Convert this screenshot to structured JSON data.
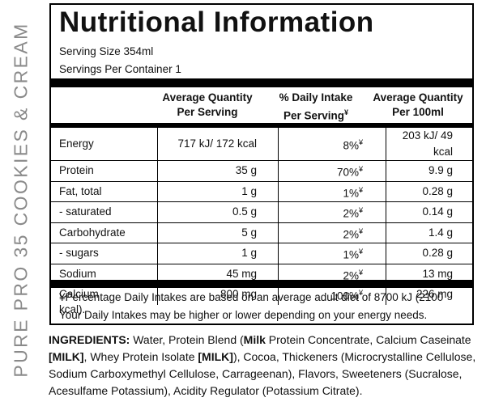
{
  "side_label": "PURE PRO 35 COOKIES & CREAM",
  "panel": {
    "title": "Nutritional Information",
    "serving_size": "Serving Size 354ml",
    "servings_per_container": "Servings Per Container 1",
    "header": [
      {
        "lines": [
          "Average Quantity",
          "Per Serving"
        ]
      },
      {
        "lines": [
          "% Daily Intake",
          "Per Serving"
        ],
        "marker": "¥"
      },
      {
        "lines": [
          "Average Quantity",
          "Per 100ml"
        ]
      }
    ],
    "rows": [
      {
        "name": "Energy",
        "per_serving": "717 kJ/ 172 kcal",
        "daily": "8%",
        "marker": "¥",
        "per_100ml": "203 kJ/ 49 kcal"
      },
      {
        "name": "Protein",
        "per_serving": "35 g",
        "daily": "70%",
        "marker": "¥",
        "per_100ml": "9.9 g"
      },
      {
        "name": "Fat, total",
        "per_serving": "1 g",
        "daily": "1%",
        "marker": "¥",
        "per_100ml": "0.28 g"
      },
      {
        "name": "- saturated",
        "per_serving": "0.5 g",
        "daily": "2%",
        "marker": "¥",
        "per_100ml": "0.14 g"
      },
      {
        "name": "Carbohydrate",
        "per_serving": "5 g",
        "daily": "2%",
        "marker": "¥",
        "per_100ml": "1.4 g"
      },
      {
        "name": "- sugars",
        "per_serving": "1 g",
        "daily": "1%",
        "marker": "¥",
        "per_100ml": "0.28 g"
      },
      {
        "name": "Sodium",
        "per_serving": "45 mg",
        "daily": "2%",
        "marker": "¥",
        "per_100ml": "13 mg"
      },
      {
        "name": "Calcium",
        "per_serving": "800 mg",
        "daily": "100%",
        "marker": "¥",
        "per_100ml": "226 mg"
      }
    ],
    "footnote": [
      "¥Percentage Daily Intakes are based on an average adult diet of 8700 kJ (2100 kcal).",
      "Your Daily Intakes may be higher or lower depending on your energy needs."
    ]
  },
  "ingredients": [
    {
      "text": "INGREDIENTS:",
      "bold": true
    },
    {
      "text": " Water, Protein Blend (",
      "bold": false
    },
    {
      "text": "Milk",
      "bold": true
    },
    {
      "text": " Protein Concentrate, Calcium Caseinate ",
      "bold": false
    },
    {
      "text": "[MILK]",
      "bold": true
    },
    {
      "text": ", Whey Protein Isolate ",
      "bold": false
    },
    {
      "text": "[MILK]",
      "bold": true
    },
    {
      "text": "), Cocoa, Thickeners (Microcrystalline Cellulose, Sodium Carboxymethyl Cellulose, Carrageenan), Flavors, Sweeteners (Sucralose, Acesulfame Potassium), Acidity Regulator (Potassium Citrate).",
      "bold": false
    }
  ]
}
